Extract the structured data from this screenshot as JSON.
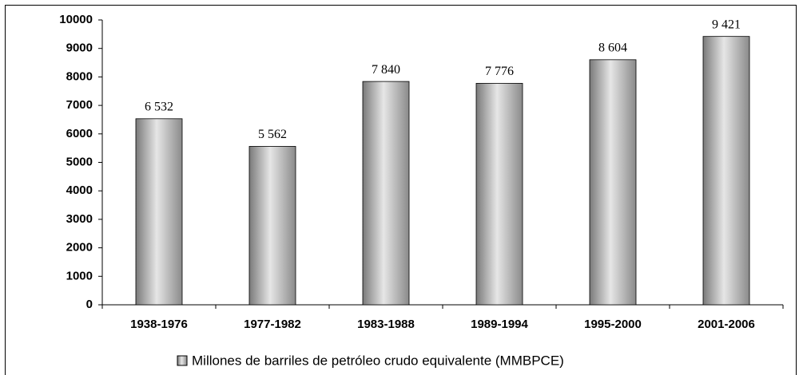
{
  "chart_data": {
    "type": "bar",
    "categories": [
      "1938-1976",
      "1977-1982",
      "1983-1988",
      "1989-1994",
      "1995-2000",
      "2001-2006"
    ],
    "values": [
      6532,
      5562,
      7840,
      7776,
      8604,
      9421
    ],
    "value_labels": [
      "6 532",
      "5 562",
      "7 840",
      "7 776",
      "8 604",
      "9 421"
    ],
    "legend": "Millones de barriles de petróleo crudo equivalente (MMBPCE)",
    "color": "#a6a6a6",
    "ylim": [
      0,
      10000
    ],
    "yticks": [
      0,
      1000,
      2000,
      3000,
      4000,
      5000,
      6000,
      7000,
      8000,
      9000,
      10000
    ],
    "grid": false
  }
}
